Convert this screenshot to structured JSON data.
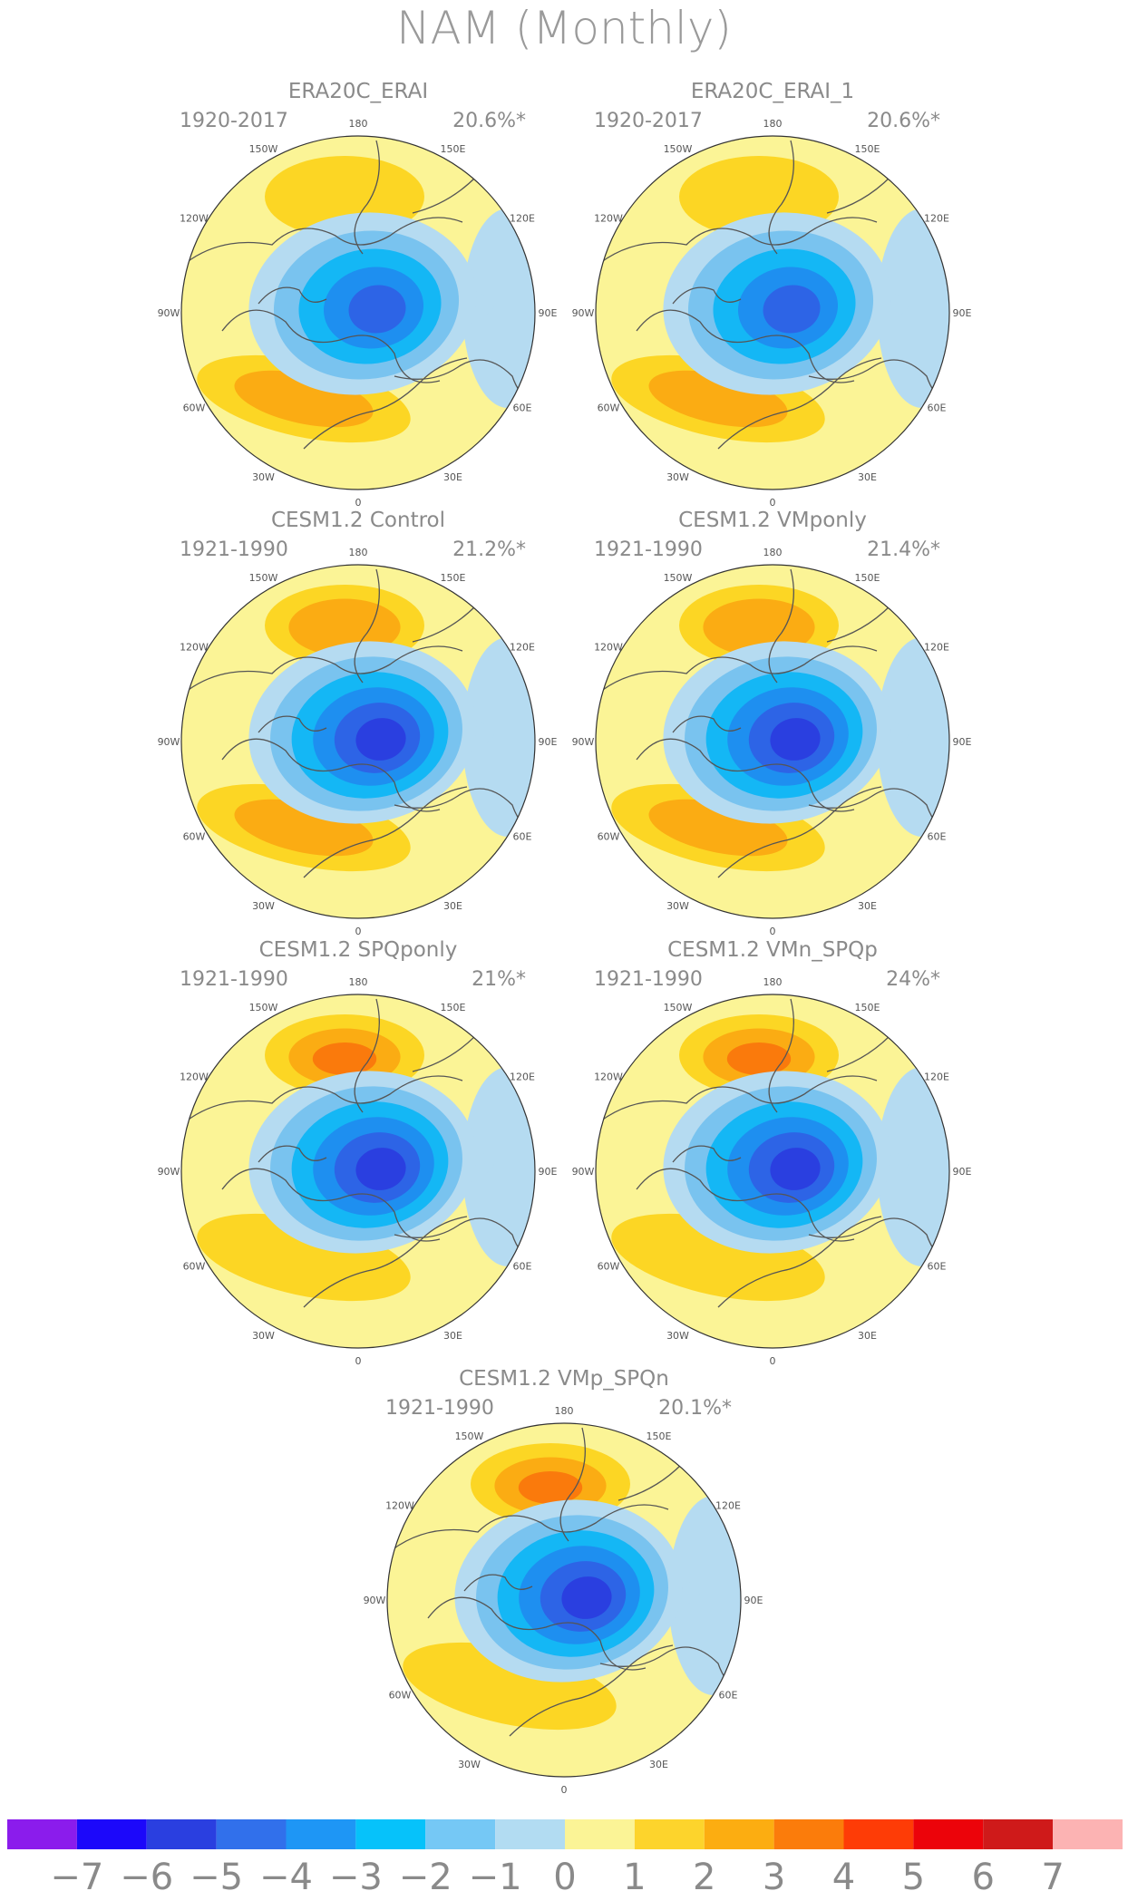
{
  "figure": {
    "title": "NAM (Monthly)",
    "palette": {
      "bg": "#fbf496",
      "n1": "#b5dbf1",
      "n2": "#79c3ef",
      "n3": "#14b7f5",
      "n4": "#1e8ff0",
      "n5": "#2d64e6",
      "n6": "#2a3fe0",
      "p1": "#fcd624",
      "p2": "#fbac13",
      "p3": "#fa7a0c",
      "p4": "#fb3b04",
      "coast": "#555555",
      "outline": "#333333"
    },
    "lon_labels": [
      "180",
      "150E",
      "120E",
      "90E",
      "60E",
      "30E",
      "0",
      "30W",
      "60W",
      "90W",
      "120W",
      "150W"
    ],
    "panels": [
      {
        "title": "ERA20C_ERAI",
        "period": "1920-2017",
        "variance": "20.6%*",
        "neg_min": -5,
        "pac_max": 1,
        "atl_max": 2
      },
      {
        "title": "ERA20C_ERAI_1",
        "period": "1920-2017",
        "variance": "20.6%*",
        "neg_min": -5,
        "pac_max": 1,
        "atl_max": 2
      },
      {
        "title": "CESM1.2 Control",
        "period": "1921-1990",
        "variance": "21.2%*",
        "neg_min": -6,
        "pac_max": 2,
        "atl_max": 2
      },
      {
        "title": "CESM1.2 VMponly",
        "period": "1921-1990",
        "variance": "21.4%*",
        "neg_min": -6,
        "pac_max": 2,
        "atl_max": 2
      },
      {
        "title": "CESM1.2 SPQponly",
        "period": "1921-1990",
        "variance": "21%*",
        "neg_min": -6,
        "pac_max": 3,
        "atl_max": 1
      },
      {
        "title": "CESM1.2 VMn_SPQp",
        "period": "1921-1990",
        "variance": "24%*",
        "neg_min": -6,
        "pac_max": 3,
        "atl_max": 1
      },
      {
        "title": "CESM1.2 VMp_SPQn",
        "period": "1921-1990",
        "variance": "20.1%*",
        "neg_min": -6,
        "pac_max": 3,
        "atl_max": 1
      }
    ],
    "colorbar": {
      "colors": [
        "#8b1cec",
        "#1c08fa",
        "#2a3fe0",
        "#3170eb",
        "#1e96f5",
        "#06c2fa",
        "#75c8f5",
        "#b2dcf2",
        "#fbf496",
        "#fdd42c",
        "#fcad11",
        "#fb7c0b",
        "#fe3c06",
        "#ec030a",
        "#cf1a1a",
        "#fcb3b3"
      ],
      "labels": [
        "−7",
        "−6",
        "−5",
        "−4",
        "−3",
        "−2",
        "−1",
        "0",
        "1",
        "2",
        "3",
        "4",
        "5",
        "6",
        "7"
      ]
    }
  }
}
